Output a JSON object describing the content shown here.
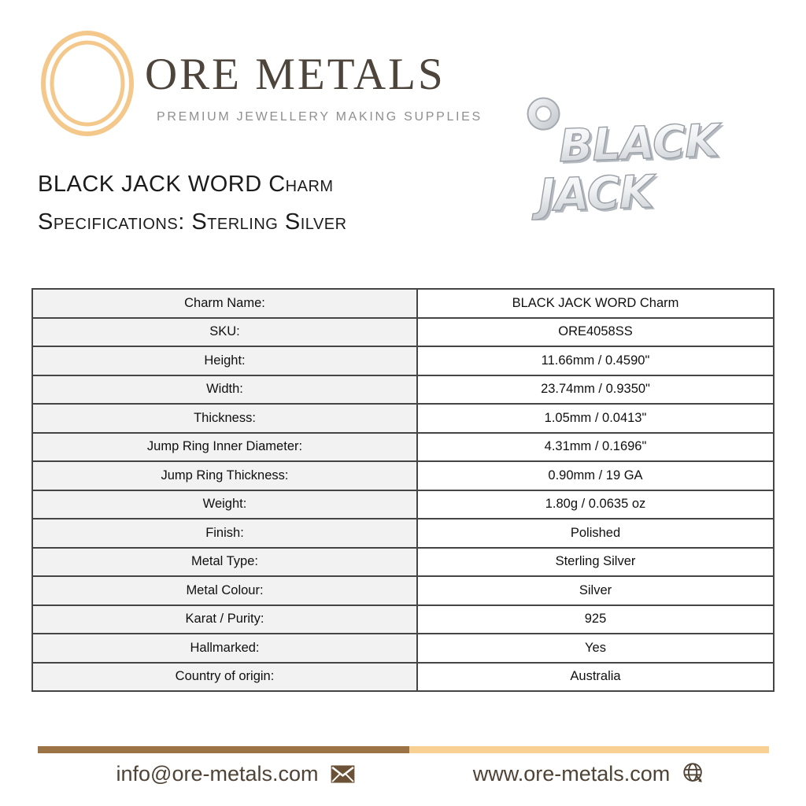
{
  "brand": {
    "name": "ORE METALS",
    "tagline": "PREMIUM JEWELLERY MAKING SUPPLIES"
  },
  "charm_image": {
    "word_line1": "BLACK",
    "word_line2": "JACK"
  },
  "title": {
    "line1": "BLACK JACK WORD Charm",
    "line2": "Specifications: Sterling Silver"
  },
  "spec_table": {
    "rows": [
      {
        "label": "Charm Name:",
        "value": "BLACK JACK WORD Charm"
      },
      {
        "label": "SKU:",
        "value": "ORE4058SS"
      },
      {
        "label": "Height:",
        "value": "11.66mm / 0.4590\""
      },
      {
        "label": "Width:",
        "value": "23.74mm / 0.9350\""
      },
      {
        "label": "Thickness:",
        "value": "1.05mm / 0.0413\""
      },
      {
        "label": "Jump Ring Inner Diameter:",
        "value": "4.31mm / 0.1696\""
      },
      {
        "label": "Jump Ring Thickness:",
        "value": "0.90mm / 19 GA"
      },
      {
        "label": "Weight:",
        "value": "1.80g / 0.0635 oz"
      },
      {
        "label": "Finish:",
        "value": "Polished"
      },
      {
        "label": "Metal Type:",
        "value": "Sterling Silver"
      },
      {
        "label": "Metal Colour:",
        "value": "Silver"
      },
      {
        "label": "Karat / Purity:",
        "value": "925"
      },
      {
        "label": "Hallmarked:",
        "value": "Yes"
      },
      {
        "label": "Country of origin:",
        "value": "Australia"
      }
    ]
  },
  "footer": {
    "email": "info@ore-metals.com",
    "website": "www.ore-metals.com",
    "email_icon": "envelope-icon",
    "website_icon": "globe-icon"
  },
  "colors": {
    "gold_ring": "#f4c78b",
    "brand_text": "#4d443b",
    "tagline_text": "#8f8f8f",
    "title_text": "#1b1b1b",
    "table_border": "#454545",
    "label_cell_bg": "#f2f2f2",
    "divider_brown": "#9c7344",
    "divider_tan": "#f8d094",
    "footer_text": "#4f4336",
    "envelope_fill": "#6b5236",
    "charm_silver_light": "#ffffff",
    "charm_silver_dark": "#c6cacf"
  }
}
